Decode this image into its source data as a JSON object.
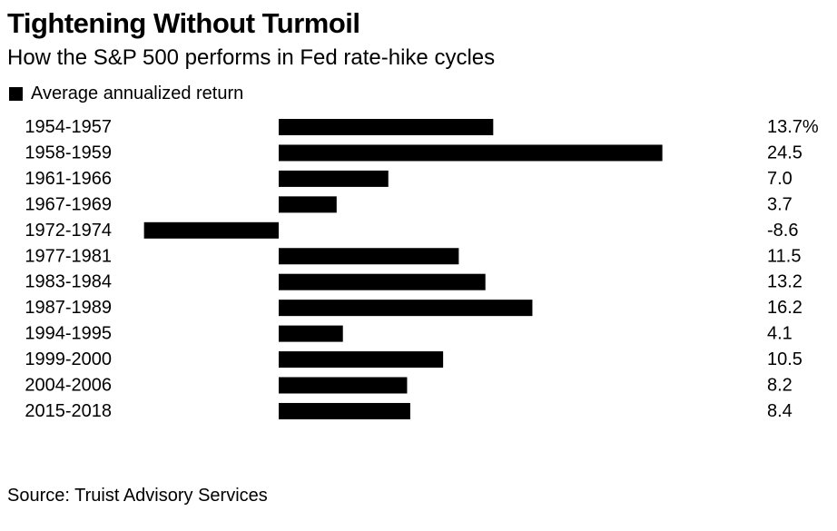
{
  "chart_data": {
    "type": "bar",
    "orientation": "horizontal",
    "title": "Tightening Without Turmoil",
    "subtitle": "How the S&P 500 performs in Fed rate-hike cycles",
    "legend": {
      "placement": "top-left",
      "entries": [
        "Average annualized return"
      ]
    },
    "categories": [
      "1954-1957",
      "1958-1959",
      "1961-1966",
      "1967-1969",
      "1972-1974",
      "1977-1981",
      "1983-1984",
      "1987-1989",
      "1994-1995",
      "1999-2000",
      "2004-2006",
      "2015-2018"
    ],
    "series": [
      {
        "name": "Average annualized return",
        "values": [
          13.7,
          24.5,
          7.0,
          3.7,
          -8.6,
          11.5,
          13.2,
          16.2,
          4.1,
          10.5,
          8.2,
          8.4
        ],
        "color": "#000000"
      }
    ],
    "value_labels": [
      "13.7%",
      "24.5",
      "7.0",
      "3.7",
      "-8.6",
      "11.5",
      "13.2",
      "16.2",
      "4.1",
      "10.5",
      "8.2",
      "8.4"
    ],
    "xlim": [
      -8.6,
      24.5
    ],
    "grid": false,
    "source": "Source: Truist Advisory Services"
  }
}
